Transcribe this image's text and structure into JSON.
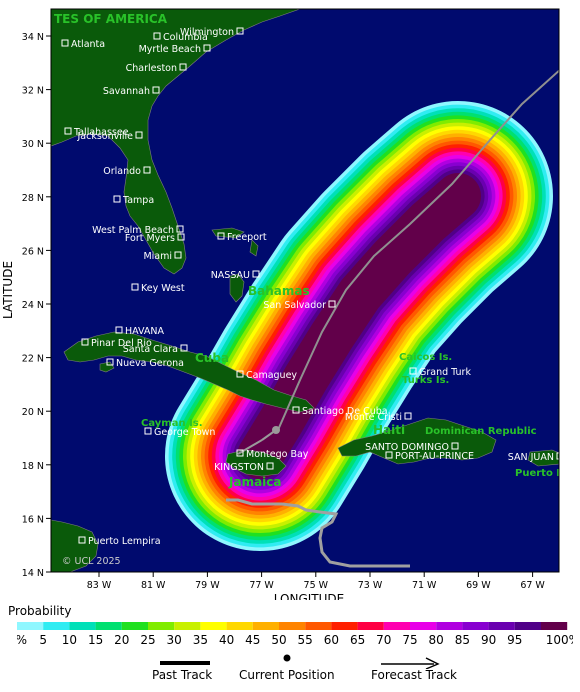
{
  "map": {
    "axis": {
      "xlabel": "LONGITUDE",
      "ylabel": "LATITUDE",
      "lon_ticks": [
        "83 W",
        "81 W",
        "79 W",
        "77 W",
        "75 W",
        "73 W",
        "71 W",
        "69 W",
        "67 W"
      ],
      "lat_ticks": [
        "34 N",
        "32 N",
        "30 N",
        "28 N",
        "26 N",
        "24 N",
        "22 N",
        "20 N",
        "18 N",
        "16 N",
        "14 N"
      ]
    },
    "colors": {
      "ocean": "#000a6e",
      "land": "#0a5a0a",
      "country_label": "#29c229",
      "track": "#9a9a9a"
    },
    "countries": [
      {
        "name": "TES OF AMERICA"
      },
      {
        "name": "Bahamas"
      },
      {
        "name": "Cuba"
      },
      {
        "name": "Cayman Is."
      },
      {
        "name": "Jamaica"
      },
      {
        "name": "Haiti"
      },
      {
        "name": "Turks Is."
      },
      {
        "name": "Caicos Is."
      },
      {
        "name": "Dominican Republic"
      },
      {
        "name": "Puerto R"
      }
    ],
    "cities": [
      {
        "name": "Wilmington"
      },
      {
        "name": "Atlanta"
      },
      {
        "name": "Columbia"
      },
      {
        "name": "Myrtle Beach"
      },
      {
        "name": "Charleston"
      },
      {
        "name": "Savannah"
      },
      {
        "name": "Tallahassee"
      },
      {
        "name": "Jacksonville"
      },
      {
        "name": "Orlando"
      },
      {
        "name": "Tampa"
      },
      {
        "name": "West Palm Beach"
      },
      {
        "name": "Fort Myers"
      },
      {
        "name": "Miami"
      },
      {
        "name": "Freeport"
      },
      {
        "name": "NASSAU"
      },
      {
        "name": "Key West"
      },
      {
        "name": "San Salvador"
      },
      {
        "name": "HAVANA"
      },
      {
        "name": "Pinar Del Rio"
      },
      {
        "name": "Santa Clara"
      },
      {
        "name": "Nueva Gerona"
      },
      {
        "name": "Camaguey"
      },
      {
        "name": "Grand Turk"
      },
      {
        "name": "Santiago De Cuba"
      },
      {
        "name": "George Town"
      },
      {
        "name": "Monte Cristi"
      },
      {
        "name": "SANTO DOMINGO"
      },
      {
        "name": "PORT-AU-PRINCE"
      },
      {
        "name": "SAN JUAN"
      },
      {
        "name": "Montego Bay"
      },
      {
        "name": "KINGSTON"
      },
      {
        "name": "Puerto Lempira"
      }
    ],
    "copyright": "© UCL 2025"
  },
  "legend": {
    "title": "Probability",
    "levels": [
      "1%",
      "5",
      "10",
      "15",
      "20",
      "25",
      "30",
      "35",
      "40",
      "45",
      "50",
      "55",
      "60",
      "65",
      "70",
      "75",
      "80",
      "85",
      "90",
      "95",
      "100%"
    ],
    "colors": [
      "#8ff7ff",
      "#30ecf2",
      "#00e0b8",
      "#00e070",
      "#20e020",
      "#80ec00",
      "#c8f000",
      "#ffff00",
      "#ffd800",
      "#ffb000",
      "#ff8400",
      "#ff5800",
      "#ff2000",
      "#ff0044",
      "#ff00b0",
      "#e800e8",
      "#b000e0",
      "#8800d0",
      "#6a00b0",
      "#500088",
      "#62004a"
    ],
    "keys": {
      "past": "Past Track",
      "current": "Current Position",
      "forecast": "Forecast Track"
    }
  }
}
